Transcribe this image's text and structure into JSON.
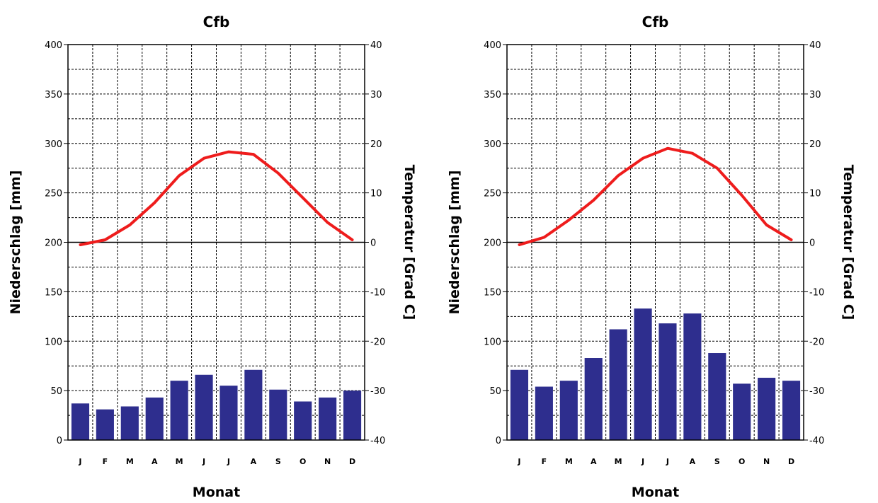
{
  "colors": {
    "precipitation_bars": "#2e2e8e",
    "temperature_line": "#ee1c1c",
    "grid": "#000000"
  },
  "chart_data": [
    {
      "type": "bar",
      "title": "Cfb",
      "xlabel": "Monat",
      "ylabel": "Niederschlag [mm]",
      "y2label": "Temperatur [Grad C]",
      "categories": [
        "J",
        "F",
        "M",
        "A",
        "M",
        "J",
        "J",
        "A",
        "S",
        "O",
        "N",
        "D"
      ],
      "ylim": [
        0,
        400
      ],
      "y_ticks": [
        "0",
        "50",
        "100",
        "150",
        "200",
        "250",
        "300",
        "350",
        "400"
      ],
      "y2lim": [
        -40,
        40
      ],
      "y2_ticks": [
        "-40",
        "-30",
        "-20",
        "-10",
        "0",
        "10",
        "20",
        "30",
        "40"
      ],
      "grid": true,
      "series": [
        {
          "kind": "bar",
          "axis": "left",
          "values": [
            37,
            31,
            34,
            43,
            60,
            66,
            55,
            71,
            51,
            39,
            43,
            50
          ]
        },
        {
          "kind": "line",
          "axis": "right",
          "values": [
            -0.5,
            0.5,
            3.5,
            8,
            13.5,
            17,
            18.3,
            17.8,
            14,
            9,
            4,
            0.5
          ]
        }
      ]
    },
    {
      "type": "bar",
      "title": "Cfb",
      "xlabel": "Monat",
      "ylabel": "Niederschlag [mm]",
      "y2label": "Temperatur [Grad C]",
      "categories": [
        "J",
        "F",
        "M",
        "A",
        "M",
        "J",
        "J",
        "A",
        "S",
        "O",
        "N",
        "D"
      ],
      "ylim": [
        0,
        400
      ],
      "y_ticks": [
        "0",
        "50",
        "100",
        "150",
        "200",
        "250",
        "300",
        "350",
        "400"
      ],
      "y2lim": [
        -40,
        40
      ],
      "y2_ticks": [
        "-40",
        "-30",
        "-20",
        "-10",
        "0",
        "10",
        "20",
        "30",
        "40"
      ],
      "grid": true,
      "series": [
        {
          "kind": "bar",
          "axis": "left",
          "values": [
            71,
            54,
            60,
            83,
            112,
            133,
            118,
            128,
            88,
            57,
            63,
            60
          ]
        },
        {
          "kind": "line",
          "axis": "right",
          "values": [
            -0.5,
            1,
            4.5,
            8.5,
            13.5,
            17,
            19,
            18,
            15,
            9.5,
            3.5,
            0.5
          ]
        }
      ]
    }
  ]
}
